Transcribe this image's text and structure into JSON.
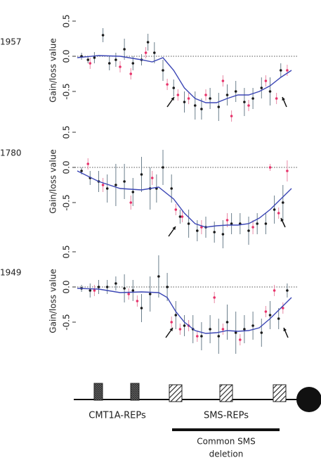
{
  "chart_data": [
    {
      "type": "scatter",
      "panel_label": "1957",
      "y_label": "Gain/loss value",
      "xlim": [
        0,
        100
      ],
      "ylim": [
        -1.0,
        0.6
      ],
      "yticks": [
        0.5,
        {
          "value": 0,
          "label": "0.0"
        },
        -0.5
      ],
      "reference_line": 0,
      "series": [
        {
          "color": "#1a1a1a",
          "x": [
            2,
            5,
            8,
            12,
            15,
            18,
            22,
            26,
            30,
            33,
            36,
            40,
            45,
            50,
            55,
            58,
            62,
            66,
            70,
            74,
            78,
            82,
            86,
            90,
            95
          ],
          "values": [
            0,
            -0.05,
            -0.02,
            0.3,
            -0.1,
            -0.05,
            0.1,
            -0.1,
            -0.05,
            0.2,
            0.05,
            -0.2,
            -0.45,
            -0.65,
            -0.7,
            -0.75,
            -0.6,
            -0.72,
            -0.55,
            -0.5,
            -0.65,
            -0.6,
            -0.45,
            -0.5,
            -0.2
          ],
          "errors": [
            0.05,
            0.05,
            0.08,
            0.1,
            0.1,
            0.1,
            0.15,
            0.1,
            0.08,
            0.12,
            0.15,
            0.15,
            0.12,
            0.15,
            0.2,
            0.15,
            0.15,
            0.2,
            0.15,
            0.15,
            0.2,
            0.15,
            0.15,
            0.2,
            0.1
          ]
        },
        {
          "color": "#e8336b",
          "x": [
            6,
            20,
            25,
            32,
            42,
            47,
            52,
            60,
            68,
            72,
            80,
            88,
            93,
            98
          ],
          "values": [
            -0.1,
            -0.15,
            -0.25,
            0.05,
            -0.4,
            -0.55,
            -0.6,
            -0.55,
            -0.35,
            -0.85,
            -0.7,
            -0.35,
            -0.6,
            -0.2
          ],
          "errors": [
            0.08,
            0.08,
            0.08,
            0.08,
            0.08,
            0.08,
            0.08,
            0.08,
            0.08,
            0.08,
            0.08,
            0.08,
            0.08,
            0.08
          ]
        },
        {
          "type": "line",
          "color": "#3b46b5",
          "x": [
            0,
            10,
            20,
            30,
            35,
            40,
            45,
            50,
            55,
            60,
            65,
            70,
            75,
            80,
            85,
            90,
            95,
            100
          ],
          "values": [
            -0.02,
            0.01,
            0.0,
            -0.05,
            -0.08,
            -0.02,
            -0.2,
            -0.45,
            -0.6,
            -0.66,
            -0.66,
            -0.6,
            -0.55,
            -0.55,
            -0.5,
            -0.42,
            -0.3,
            -0.2
          ]
        }
      ]
    },
    {
      "type": "scatter",
      "panel_label": "1780",
      "y_label": "Gain/loss value",
      "xlim": [
        0,
        100
      ],
      "ylim": [
        -1.0,
        0.6
      ],
      "yticks": [
        0.5,
        {
          "value": 0,
          "label": "0.0"
        },
        -0.5
      ],
      "reference_line": 0,
      "series": [
        {
          "color": "#1a1a1a",
          "x": [
            2,
            6,
            10,
            14,
            18,
            22,
            26,
            30,
            34,
            37,
            40,
            44,
            48,
            52,
            56,
            60,
            64,
            68,
            72,
            76,
            80,
            84,
            88,
            92,
            96
          ],
          "values": [
            -0.05,
            -0.15,
            -0.2,
            -0.3,
            -0.25,
            -0.2,
            -0.35,
            -0.1,
            -0.3,
            -0.3,
            0.0,
            -0.3,
            -0.7,
            -0.8,
            -0.9,
            -0.85,
            -0.92,
            -0.95,
            -0.8,
            -0.8,
            -0.9,
            -0.8,
            -0.8,
            -0.6,
            -0.5
          ],
          "errors": [
            0.05,
            0.1,
            0.15,
            0.2,
            0.3,
            0.25,
            0.2,
            0.25,
            0.3,
            0.2,
            0.25,
            0.2,
            0.1,
            0.2,
            0.15,
            0.15,
            0.15,
            0.2,
            0.15,
            0.15,
            0.2,
            0.15,
            0.15,
            0.2,
            0.25
          ]
        },
        {
          "color": "#e8336b",
          "x": [
            5,
            12,
            25,
            35,
            46,
            49,
            58,
            70,
            82,
            90,
            94,
            98
          ],
          "values": [
            0.05,
            -0.25,
            -0.5,
            -0.15,
            -0.6,
            -0.7,
            -0.85,
            -0.75,
            -0.85,
            0.0,
            -0.65,
            -0.05
          ],
          "errors": [
            0.08,
            0.1,
            0.1,
            0.1,
            0.08,
            0.08,
            0.1,
            0.1,
            0.1,
            0.05,
            0.08,
            0.15
          ]
        },
        {
          "type": "line",
          "color": "#3b46b5",
          "x": [
            0,
            10,
            20,
            30,
            38,
            45,
            50,
            55,
            60,
            65,
            70,
            75,
            80,
            85,
            90,
            95,
            100
          ],
          "values": [
            -0.05,
            -0.2,
            -0.3,
            -0.32,
            -0.28,
            -0.45,
            -0.65,
            -0.8,
            -0.85,
            -0.83,
            -0.82,
            -0.82,
            -0.8,
            -0.72,
            -0.6,
            -0.45,
            -0.3
          ]
        }
      ]
    },
    {
      "type": "scatter",
      "panel_label": "1949",
      "y_label": "Gain/loss value",
      "xlim": [
        0,
        100
      ],
      "ylim": [
        -1.0,
        0.6
      ],
      "yticks": [
        0.5,
        {
          "value": 0,
          "label": "0.0"
        },
        -0.5
      ],
      "reference_line": 0,
      "series": [
        {
          "color": "#1a1a1a",
          "x": [
            2,
            6,
            10,
            14,
            18,
            22,
            26,
            30,
            34,
            38,
            42,
            46,
            50,
            54,
            58,
            62,
            66,
            70,
            74,
            78,
            82,
            86,
            90,
            94,
            98
          ],
          "values": [
            -0.02,
            -0.05,
            0.0,
            0.0,
            0.05,
            -0.02,
            -0.05,
            -0.3,
            -0.1,
            0.15,
            0.0,
            -0.4,
            -0.55,
            -0.6,
            -0.7,
            -0.6,
            -0.7,
            -0.5,
            -0.65,
            -0.6,
            -0.55,
            -0.65,
            -0.4,
            -0.45,
            -0.05
          ],
          "errors": [
            0.05,
            0.1,
            0.1,
            0.1,
            0.1,
            0.2,
            0.15,
            0.2,
            0.25,
            0.3,
            0.2,
            0.2,
            0.15,
            0.2,
            0.2,
            0.2,
            0.25,
            0.25,
            0.3,
            0.2,
            0.2,
            0.2,
            0.2,
            0.15,
            0.1
          ]
        },
        {
          "color": "#e8336b",
          "x": [
            8,
            24,
            28,
            44,
            48,
            52,
            56,
            64,
            68,
            76,
            88,
            92,
            96
          ],
          "values": [
            -0.05,
            -0.1,
            -0.2,
            -0.5,
            -0.6,
            -0.55,
            -0.7,
            -0.15,
            -0.6,
            -0.75,
            -0.35,
            -0.05,
            -0.3
          ],
          "errors": [
            0.08,
            0.08,
            0.08,
            0.08,
            0.08,
            0.08,
            0.08,
            0.08,
            0.08,
            0.08,
            0.08,
            0.08,
            0.08
          ]
        },
        {
          "type": "line",
          "color": "#3b46b5",
          "x": [
            0,
            10,
            20,
            30,
            38,
            42,
            46,
            50,
            55,
            60,
            65,
            70,
            75,
            80,
            85,
            90,
            95,
            100
          ],
          "values": [
            -0.02,
            -0.03,
            -0.08,
            -0.07,
            -0.08,
            -0.15,
            -0.35,
            -0.5,
            -0.62,
            -0.66,
            -0.65,
            -0.62,
            -0.63,
            -0.62,
            -0.58,
            -0.45,
            -0.3,
            -0.15
          ]
        }
      ]
    }
  ],
  "diagram": {
    "cmt_label": "CMT1A-REPs",
    "sms_label": "SMS-REPs",
    "deletion_label": [
      "Common SMS",
      "deletion"
    ]
  }
}
